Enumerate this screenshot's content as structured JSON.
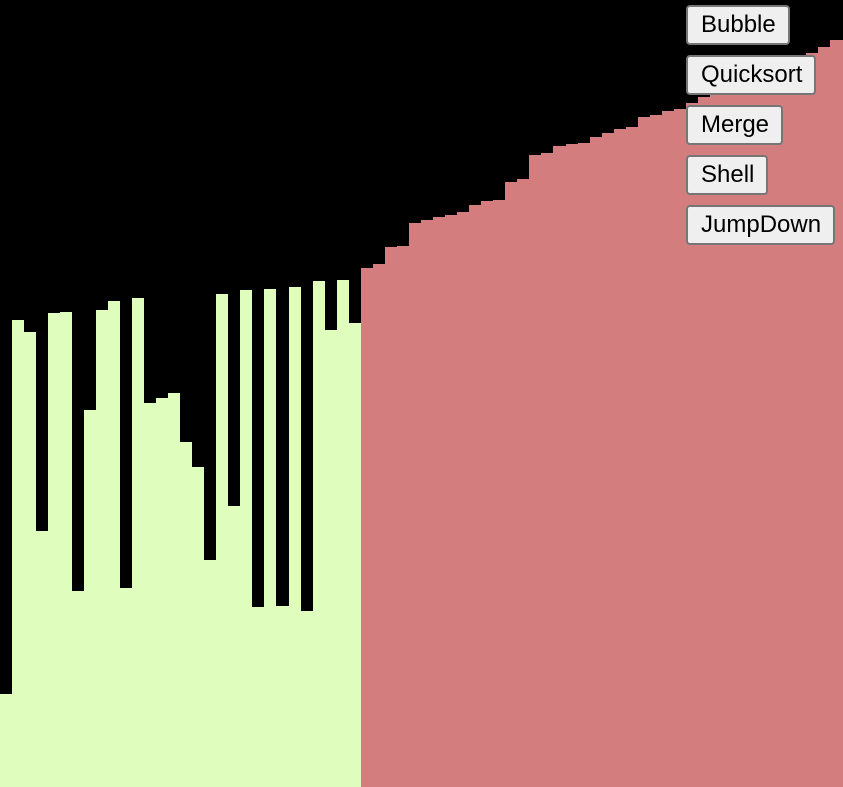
{
  "colors": {
    "background": "#000000",
    "unsorted": "#dffdbc",
    "sorted": "#d37d7f"
  },
  "controls": {
    "bubble_label": "Bubble",
    "quicksort_label": "Quicksort",
    "merge_label": "Merge",
    "shell_label": "Shell",
    "jumpdown_label": "JumpDown"
  },
  "chart_data": {
    "type": "bar",
    "max_value": 787,
    "unsorted": [
      93,
      467,
      455,
      256,
      474,
      475,
      196,
      377,
      477,
      486,
      199,
      489,
      384,
      389,
      394,
      345,
      320,
      227,
      493,
      281,
      497,
      180,
      498,
      181,
      500,
      176,
      506,
      457,
      507,
      464
    ],
    "sorted": [
      519,
      523,
      540,
      541,
      564,
      567,
      570,
      572,
      575,
      582,
      586,
      587,
      605,
      608,
      632,
      634,
      641,
      643,
      644,
      650,
      654,
      658,
      660,
      670,
      672,
      676,
      678,
      684,
      690,
      696,
      704,
      706,
      710,
      712,
      720,
      723,
      730,
      734,
      740,
      747
    ]
  }
}
